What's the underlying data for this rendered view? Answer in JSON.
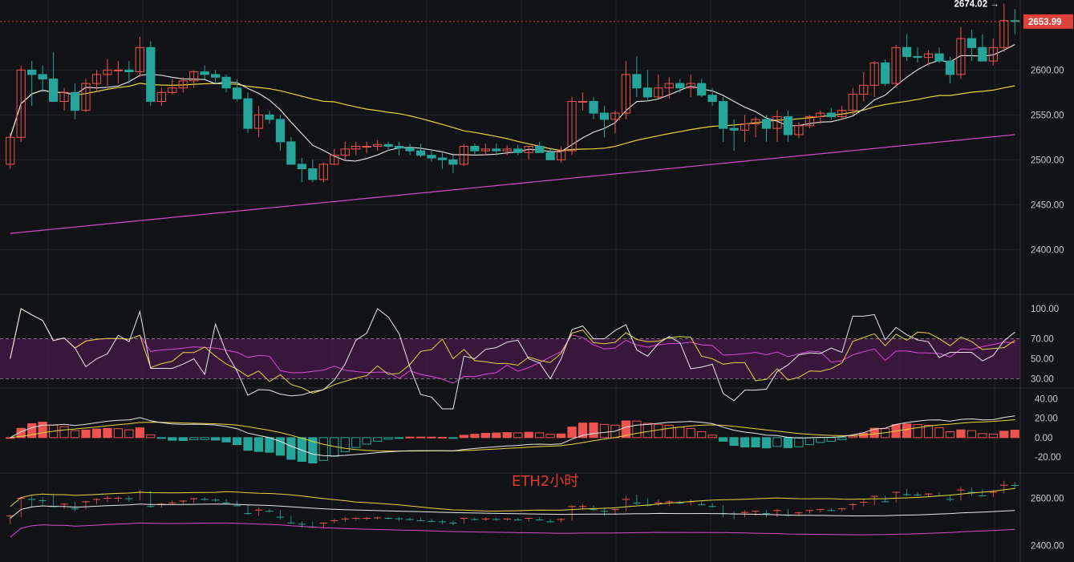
{
  "watermark": "ETH2小时",
  "colors": {
    "up": "#ef5350",
    "down": "#26a69a",
    "bg": "#121316",
    "grid": "#1f2228",
    "ma_fast": "#e8e8e8",
    "ma_mid": "#e6d63c",
    "ma_slow": "#d64ad0",
    "rsi_band": "#5a1a5c",
    "price_tag": "#e0403a"
  },
  "chart_data": [
    {
      "type": "candlestick",
      "title": "",
      "y_ticks": [
        2400,
        2450,
        2500,
        2550,
        2600
      ],
      "ylim": [
        2352,
        2678
      ],
      "last_price_label": "2653.99",
      "high_annotation": "2674.02 →",
      "ohlc": [
        [
          2495,
          2530,
          2490,
          2525
        ],
        [
          2525,
          2605,
          2520,
          2600
        ],
        [
          2600,
          2610,
          2560,
          2595
        ],
        [
          2595,
          2605,
          2575,
          2590
        ],
        [
          2590,
          2620,
          2565,
          2565
        ],
        [
          2565,
          2580,
          2555,
          2575
        ],
        [
          2575,
          2585,
          2545,
          2555
        ],
        [
          2555,
          2590,
          2553,
          2585
        ],
        [
          2585,
          2600,
          2575,
          2595
        ],
        [
          2595,
          2612,
          2582,
          2600
        ],
        [
          2600,
          2610,
          2585,
          2600
        ],
        [
          2600,
          2610,
          2585,
          2598
        ],
        [
          2598,
          2637,
          2592,
          2625
        ],
        [
          2625,
          2632,
          2560,
          2565
        ],
        [
          2565,
          2580,
          2560,
          2575
        ],
        [
          2575,
          2590,
          2573,
          2580
        ],
        [
          2580,
          2592,
          2575,
          2588
        ],
        [
          2588,
          2600,
          2580,
          2598
        ],
        [
          2598,
          2605,
          2590,
          2595
        ],
        [
          2595,
          2600,
          2585,
          2592
        ],
        [
          2592,
          2595,
          2575,
          2580
        ],
        [
          2580,
          2590,
          2565,
          2568
        ],
        [
          2568,
          2575,
          2530,
          2535
        ],
        [
          2535,
          2560,
          2525,
          2550
        ],
        [
          2550,
          2555,
          2540,
          2545
        ],
        [
          2545,
          2550,
          2510,
          2520
        ],
        [
          2520,
          2525,
          2495,
          2495
        ],
        [
          2495,
          2502,
          2475,
          2490
        ],
        [
          2490,
          2500,
          2475,
          2478
        ],
        [
          2478,
          2497,
          2475,
          2495
        ],
        [
          2495,
          2512,
          2494,
          2505
        ],
        [
          2505,
          2520,
          2500,
          2512
        ],
        [
          2512,
          2520,
          2505,
          2515
        ],
        [
          2515,
          2520,
          2507,
          2515
        ],
        [
          2515,
          2522,
          2510,
          2517
        ],
        [
          2517,
          2520,
          2510,
          2515
        ],
        [
          2515,
          2520,
          2505,
          2513
        ],
        [
          2513,
          2518,
          2505,
          2510
        ],
        [
          2510,
          2518,
          2503,
          2505
        ],
        [
          2505,
          2512,
          2498,
          2502
        ],
        [
          2502,
          2508,
          2490,
          2500
        ],
        [
          2500,
          2505,
          2485,
          2495
        ],
        [
          2495,
          2517,
          2493,
          2515
        ],
        [
          2515,
          2518,
          2505,
          2510
        ],
        [
          2510,
          2518,
          2505,
          2512
        ],
        [
          2512,
          2518,
          2505,
          2510
        ],
        [
          2510,
          2516,
          2505,
          2512
        ],
        [
          2512,
          2517,
          2505,
          2508
        ],
        [
          2508,
          2515,
          2500,
          2515
        ],
        [
          2515,
          2520,
          2510,
          2508
        ],
        [
          2508,
          2512,
          2500,
          2500
        ],
        [
          2500,
          2515,
          2497,
          2510
        ],
        [
          2510,
          2570,
          2505,
          2565
        ],
        [
          2565,
          2575,
          2555,
          2565
        ],
        [
          2565,
          2570,
          2545,
          2552
        ],
        [
          2552,
          2560,
          2525,
          2545
        ],
        [
          2545,
          2555,
          2530,
          2552
        ],
        [
          2552,
          2610,
          2545,
          2595
        ],
        [
          2595,
          2615,
          2570,
          2580
        ],
        [
          2580,
          2600,
          2565,
          2570
        ],
        [
          2570,
          2595,
          2568,
          2580
        ],
        [
          2580,
          2592,
          2568,
          2585
        ],
        [
          2585,
          2590,
          2575,
          2580
        ],
        [
          2580,
          2595,
          2570,
          2585
        ],
        [
          2585,
          2590,
          2570,
          2572
        ],
        [
          2572,
          2580,
          2560,
          2565
        ],
        [
          2565,
          2570,
          2520,
          2535
        ],
        [
          2535,
          2545,
          2510,
          2533
        ],
        [
          2533,
          2550,
          2520,
          2540
        ],
        [
          2540,
          2548,
          2525,
          2545
        ],
        [
          2545,
          2550,
          2520,
          2535
        ],
        [
          2535,
          2555,
          2520,
          2548
        ],
        [
          2548,
          2555,
          2520,
          2528
        ],
        [
          2528,
          2542,
          2524,
          2538
        ],
        [
          2538,
          2550,
          2535,
          2548
        ],
        [
          2548,
          2555,
          2540,
          2552
        ],
        [
          2552,
          2558,
          2545,
          2548
        ],
        [
          2548,
          2560,
          2545,
          2555
        ],
        [
          2555,
          2580,
          2550,
          2573
        ],
        [
          2573,
          2598,
          2565,
          2583
        ],
        [
          2583,
          2610,
          2570,
          2608
        ],
        [
          2608,
          2612,
          2582,
          2585
        ],
        [
          2585,
          2628,
          2580,
          2625
        ],
        [
          2625,
          2640,
          2610,
          2615
        ],
        [
          2615,
          2625,
          2608,
          2614
        ],
        [
          2614,
          2622,
          2605,
          2618
        ],
        [
          2618,
          2625,
          2608,
          2610
        ],
        [
          2610,
          2615,
          2585,
          2595
        ],
        [
          2595,
          2648,
          2590,
          2635
        ],
        [
          2635,
          2645,
          2610,
          2625
        ],
        [
          2625,
          2640,
          2610,
          2610
        ],
        [
          2610,
          2635,
          2605,
          2625
        ],
        [
          2625,
          2674,
          2620,
          2655
        ],
        [
          2655,
          2668,
          2640,
          2654
        ]
      ]
    },
    {
      "type": "line",
      "name": "",
      "y_ticks": [
        "30.00",
        "50.00",
        "70.00",
        "100.00"
      ],
      "ylim": [
        24,
        112
      ],
      "band": [
        30,
        70
      ]
    },
    {
      "type": "bar",
      "name": "",
      "y_ticks": [
        "-20.00",
        "0.00",
        "20.00",
        "40.00"
      ],
      "ylim": [
        -35,
        48
      ]
    },
    {
      "type": "line",
      "name": "",
      "y_ticks": [
        "2400.00",
        "2600.00"
      ],
      "ylim": [
        2330,
        2700
      ]
    }
  ]
}
